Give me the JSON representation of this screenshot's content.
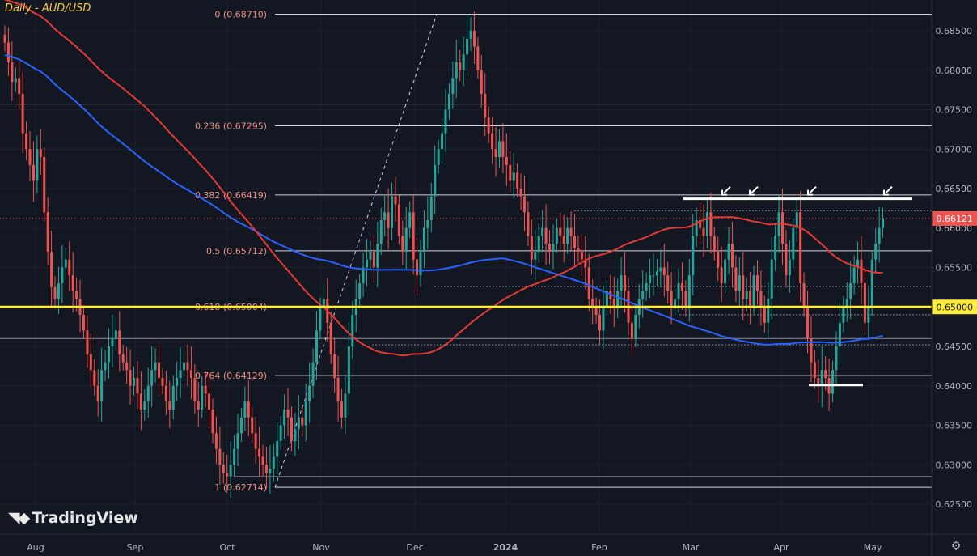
{
  "title": "Daily - AUD/USD",
  "logo_text": "TradingView",
  "colors": {
    "background": "#131722",
    "up": "#26a69a",
    "down": "#ef5350",
    "ma_fast": "#e53935",
    "ma_slow": "#2962ff",
    "key_level": "#ffeb3b",
    "fib_line": "#d1d4dc",
    "fib_label": "#e88f86"
  },
  "icons": {
    "settings": "gear-icon",
    "arrows": "arrow-down-left-icon"
  },
  "chart_data": {
    "type": "candlestick",
    "instrument": "AUD/USD",
    "timeframe": "Daily",
    "ylim": [
      0.6215,
      0.6875
    ],
    "y_ticks": [
      "0.68500",
      "0.68000",
      "0.67500",
      "0.67000",
      "0.66500",
      "0.66000",
      "0.65500",
      "0.65000",
      "0.64500",
      "0.64000",
      "0.63500",
      "0.63000",
      "0.62500"
    ],
    "x_labels": [
      "Aug",
      "Sep",
      "Oct",
      "Nov",
      "Dec",
      "2024",
      "Feb",
      "Mar",
      "Apr",
      "May"
    ],
    "fib_levels": [
      {
        "label": "0 (0.68710)",
        "price": 0.6871
      },
      {
        "label": "0.236 (0.67295)",
        "price": 0.67295
      },
      {
        "label": "0.382 (0.66419)",
        "price": 0.66419
      },
      {
        "label": "0.5 (0.65712)",
        "price": 0.65712
      },
      {
        "label": "0.618 (0.65004)",
        "price": 0.65004
      },
      {
        "label": "0.764 (0.64129)",
        "price": 0.64129
      },
      {
        "label": "1 (0.62714)",
        "price": 0.62714
      }
    ],
    "extra_levels": [
      0.6757,
      0.6622,
      0.6526,
      0.649,
      0.646,
      0.6452,
      0.6285
    ],
    "key_level": {
      "price": 0.65,
      "label": "0.65000"
    },
    "last_price": {
      "price": 0.66121,
      "label": "0.66121"
    },
    "resistance_price": 0.6637,
    "support_price": 0.6401,
    "closes": [
      0.6835,
      0.681,
      0.6785,
      0.679,
      0.677,
      0.672,
      0.67,
      0.668,
      0.666,
      0.67,
      0.669,
      0.662,
      0.657,
      0.6525,
      0.651,
      0.653,
      0.655,
      0.656,
      0.654,
      0.652,
      0.651,
      0.649,
      0.647,
      0.644,
      0.642,
      0.64,
      0.638,
      0.642,
      0.643,
      0.645,
      0.646,
      0.647,
      0.644,
      0.643,
      0.642,
      0.64,
      0.641,
      0.639,
      0.637,
      0.638,
      0.64,
      0.642,
      0.643,
      0.641,
      0.64,
      0.638,
      0.637,
      0.64,
      0.641,
      0.642,
      0.643,
      0.642,
      0.641,
      0.638,
      0.637,
      0.64,
      0.639,
      0.637,
      0.634,
      0.632,
      0.63,
      0.629,
      0.6285,
      0.63,
      0.632,
      0.634,
      0.636,
      0.638,
      0.636,
      0.634,
      0.632,
      0.631,
      0.63,
      0.629,
      0.6295,
      0.631,
      0.633,
      0.635,
      0.637,
      0.636,
      0.633,
      0.6345,
      0.636,
      0.635,
      0.638,
      0.64,
      0.643,
      0.647,
      0.65,
      0.651,
      0.648,
      0.644,
      0.641,
      0.638,
      0.636,
      0.639,
      0.645,
      0.649,
      0.651,
      0.653,
      0.655,
      0.656,
      0.657,
      0.655,
      0.658,
      0.661,
      0.662,
      0.66,
      0.664,
      0.663,
      0.659,
      0.657,
      0.66,
      0.662,
      0.656,
      0.654,
      0.657,
      0.66,
      0.661,
      0.664,
      0.668,
      0.67,
      0.672,
      0.675,
      0.677,
      0.679,
      0.681,
      0.68,
      0.682,
      0.684,
      0.685,
      0.683,
      0.68,
      0.677,
      0.674,
      0.672,
      0.67,
      0.669,
      0.671,
      0.669,
      0.668,
      0.666,
      0.667,
      0.665,
      0.664,
      0.662,
      0.659,
      0.656,
      0.657,
      0.659,
      0.66,
      0.658,
      0.657,
      0.658,
      0.66,
      0.659,
      0.658,
      0.66,
      0.659,
      0.6575,
      0.657,
      0.656,
      0.655,
      0.651,
      0.65,
      0.649,
      0.647,
      0.65,
      0.652,
      0.651,
      0.65,
      0.652,
      0.654,
      0.652,
      0.648,
      0.646,
      0.649,
      0.651,
      0.652,
      0.653,
      0.654,
      0.654,
      0.6545,
      0.655,
      0.654,
      0.652,
      0.65,
      0.651,
      0.653,
      0.652,
      0.65,
      0.654,
      0.659,
      0.661,
      0.66,
      0.659,
      0.662,
      0.659,
      0.657,
      0.655,
      0.653,
      0.656,
      0.658,
      0.655,
      0.652,
      0.654,
      0.651,
      0.652,
      0.65,
      0.654,
      0.652,
      0.65,
      0.648,
      0.651,
      0.656,
      0.659,
      0.662,
      0.658,
      0.654,
      0.656,
      0.66,
      0.662,
      0.653,
      0.65,
      0.646,
      0.643,
      0.641,
      0.64,
      0.642,
      0.641,
      0.639,
      0.642,
      0.645,
      0.648,
      0.65,
      0.651,
      0.653,
      0.655,
      0.656,
      0.653,
      0.648,
      0.65,
      0.656,
      0.658,
      0.66,
      0.6612
    ]
  }
}
